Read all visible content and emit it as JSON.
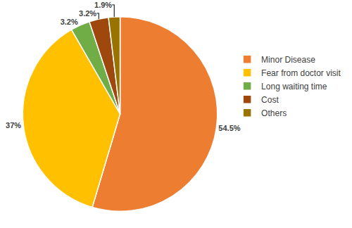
{
  "chart_data": {
    "type": "pie",
    "categories": [
      "Minor Disease",
      "Fear from doctor visit",
      "Long waiting time",
      "Cost",
      "Others"
    ],
    "values": [
      54.5,
      37,
      3.2,
      3.2,
      1.9
    ],
    "value_labels": [
      "54.5%",
      "37%",
      "3.2%",
      "3.2%",
      "1.9%"
    ],
    "colors": [
      "#ED7D31",
      "#FFC000",
      "#70AD47",
      "#9E480E",
      "#997300"
    ],
    "data_labels": true,
    "legend": "right"
  }
}
